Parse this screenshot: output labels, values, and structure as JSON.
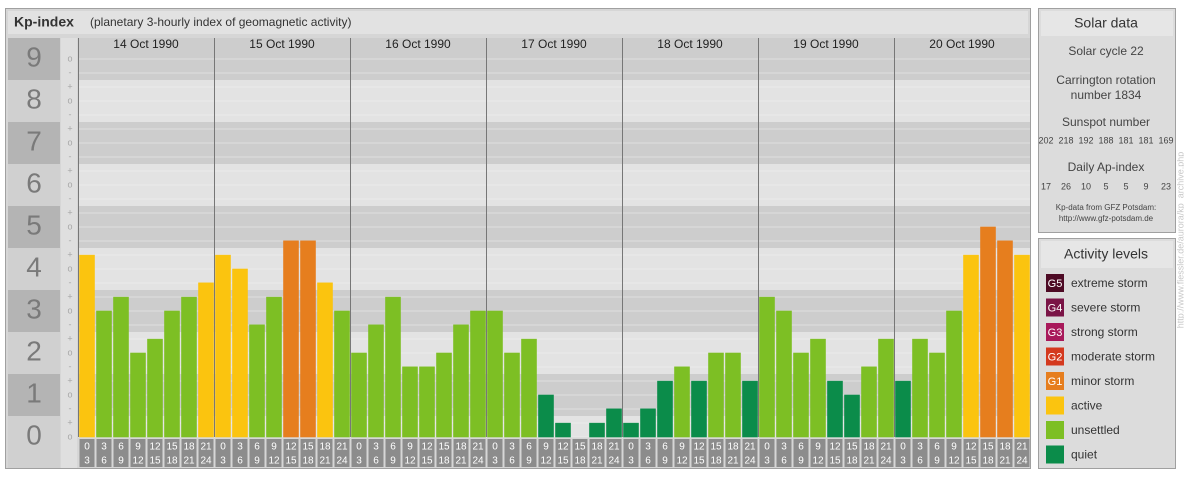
{
  "chart_data": {
    "type": "bar",
    "title": "Kp-index",
    "subtitle": "(planetary 3-hourly index of geomagnetic activity)",
    "ylim": [
      0,
      9.5
    ],
    "yticks": [
      0,
      1,
      2,
      3,
      4,
      5,
      6,
      7,
      8,
      9
    ],
    "minor_ticks": [
      "-",
      "o",
      "+"
    ],
    "hours": [
      [
        "0",
        "3"
      ],
      [
        "3",
        "6"
      ],
      [
        "6",
        "9"
      ],
      [
        "9",
        "12"
      ],
      [
        "12",
        "15"
      ],
      [
        "15",
        "18"
      ],
      [
        "18",
        "21"
      ],
      [
        "21",
        "24"
      ]
    ],
    "days": [
      {
        "date": "14 Oct 1990",
        "values": [
          4.33,
          3,
          3.33,
          2,
          2.33,
          3,
          3.33,
          3.67
        ],
        "levels": [
          5,
          6,
          6,
          6,
          6,
          6,
          6,
          5
        ]
      },
      {
        "date": "15 Oct 1990",
        "values": [
          4.33,
          4,
          2.67,
          3.33,
          4.67,
          4.67,
          3.67,
          3
        ],
        "levels": [
          5,
          5,
          6,
          6,
          4,
          4,
          5,
          6
        ]
      },
      {
        "date": "16 Oct 1990",
        "values": [
          2,
          2.67,
          3.33,
          1.67,
          1.67,
          2,
          2.67,
          3
        ],
        "levels": [
          6,
          6,
          6,
          6,
          6,
          6,
          6,
          6
        ]
      },
      {
        "date": "17 Oct 1990",
        "values": [
          3,
          2,
          2.33,
          1,
          0.33,
          0,
          0.33,
          0.67
        ],
        "levels": [
          6,
          6,
          6,
          7,
          7,
          7,
          7,
          7
        ]
      },
      {
        "date": "18 Oct 1990",
        "values": [
          0.33,
          0.67,
          1.33,
          1.67,
          1.33,
          2,
          2,
          1.33
        ],
        "levels": [
          7,
          7,
          7,
          6,
          7,
          6,
          6,
          7
        ]
      },
      {
        "date": "19 Oct 1990",
        "values": [
          3.33,
          3,
          2,
          2.33,
          1.33,
          1,
          1.67,
          2.33
        ],
        "levels": [
          6,
          6,
          6,
          6,
          7,
          7,
          6,
          6
        ]
      },
      {
        "date": "20 Oct 1990",
        "values": [
          1.33,
          2.33,
          2,
          3,
          4.33,
          5,
          4.67,
          4.33
        ],
        "levels": [
          7,
          6,
          6,
          6,
          5,
          4,
          4,
          5
        ]
      }
    ],
    "levels_title": "Activity levels",
    "levels": [
      {
        "badge": "G5",
        "name": "extreme storm",
        "color": "#4d0a24"
      },
      {
        "badge": "G4",
        "name": "severe storm",
        "color": "#7a1446"
      },
      {
        "badge": "G3",
        "name": "strong storm",
        "color": "#a8195a"
      },
      {
        "badge": "G2",
        "name": "moderate storm",
        "color": "#d4391e"
      },
      {
        "badge": "G1",
        "name": "minor storm",
        "color": "#e67e1e"
      },
      {
        "name": "active",
        "color": "#fbc40f"
      },
      {
        "name": "unsettled",
        "color": "#7dbf24"
      },
      {
        "name": "quiet",
        "color": "#0b8c4a"
      }
    ]
  },
  "solar_data": {
    "title": "Solar data",
    "cycle": "Solar cycle 22",
    "carrington": [
      "Carrington rotation",
      "number 1834"
    ],
    "sunspot_title": "Sunspot number",
    "sunspots": [
      202,
      218,
      192,
      188,
      181,
      181,
      169
    ],
    "ap_title": "Daily Ap-index",
    "ap": [
      17,
      26,
      10,
      5,
      5,
      9,
      23
    ],
    "source": "Kp-data from GFZ Potsdam:",
    "source_url": "http://www.gfz-potsdam.de"
  },
  "side_note": "http://www.fiessler.de/aurora/kp_archive.php"
}
